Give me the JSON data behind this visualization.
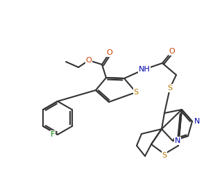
{
  "bg_color": "#ffffff",
  "line_color": "#333333",
  "atom_colors": {
    "O": "#c84000",
    "S": "#b87800",
    "N": "#0000aa",
    "F": "#008800",
    "C": "#333333"
  },
  "figsize": [
    3.2,
    2.71
  ],
  "dpi": 100
}
